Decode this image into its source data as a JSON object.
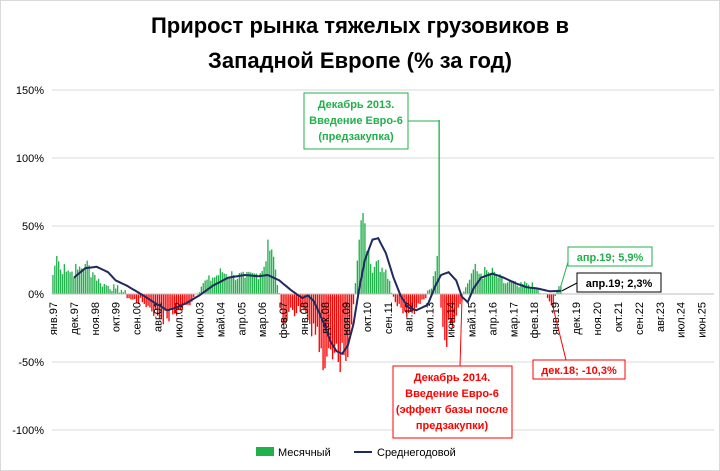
{
  "chart_data": {
    "type": "bar+line",
    "title": [
      "Прирост рынка тяжелых грузовиков в",
      "Западной Европе (% за год)"
    ],
    "ylim": [
      -100,
      150
    ],
    "yticks": [
      150,
      100,
      50,
      0,
      -50,
      -100
    ],
    "ytick_labels": [
      "150%",
      "100%",
      "50%",
      "0%",
      "-50%",
      "-100%"
    ],
    "grid": true,
    "x_start": "1997-01",
    "x_end": "2025-12",
    "x_tick_labels": [
      "янв.97",
      "дек.97",
      "ноя.98",
      "окт.99",
      "сен.00",
      "авг.01",
      "июл.02",
      "июн.03",
      "май.04",
      "апр.05",
      "мар.06",
      "фев.07",
      "янв.08",
      "дек.08",
      "ноя.09",
      "окт.10",
      "сен.11",
      "авг.12",
      "июл.13",
      "июн.14",
      "май.15",
      "апр.16",
      "мар.17",
      "фев.18",
      "янв.19",
      "дек.19",
      "ноя.20",
      "окт.21",
      "сен.22",
      "авг.23",
      "июл.24",
      "июн.25"
    ],
    "series": [
      {
        "name": "Месячный",
        "type": "bar",
        "color_positive": "#21b04b",
        "color_negative": "#ff0000",
        "monthly_from": "1997-01",
        "monthly_to": "2019-04",
        "anchors": [
          [
            "1997-01",
            14
          ],
          [
            "1997-03",
            28
          ],
          [
            "1997-05",
            18
          ],
          [
            "1997-07",
            22
          ],
          [
            "1997-10",
            16
          ],
          [
            "1998-02",
            18
          ],
          [
            "1998-06",
            22
          ],
          [
            "1998-10",
            16
          ],
          [
            "1999-02",
            8
          ],
          [
            "1999-06",
            6
          ],
          [
            "1999-10",
            4
          ],
          [
            "2000-01",
            3
          ],
          [
            "2000-06",
            -4
          ],
          [
            "2000-12",
            -6
          ],
          [
            "2001-04",
            -10
          ],
          [
            "2001-08",
            -16
          ],
          [
            "2002-01",
            -18
          ],
          [
            "2002-04",
            -15
          ],
          [
            "2002-08",
            -12
          ],
          [
            "2002-12",
            -8
          ],
          [
            "2003-04",
            0
          ],
          [
            "2003-08",
            8
          ],
          [
            "2004-01",
            12
          ],
          [
            "2004-06",
            16
          ],
          [
            "2004-12",
            14
          ],
          [
            "2005-06",
            12
          ],
          [
            "2005-12",
            15
          ],
          [
            "2006-04",
            20
          ],
          [
            "2006-06",
            40
          ],
          [
            "2006-10",
            18
          ],
          [
            "2007-01",
            -12
          ],
          [
            "2007-03",
            -22
          ],
          [
            "2007-06",
            -10
          ],
          [
            "2007-09",
            -14
          ],
          [
            "2008-01",
            -12
          ],
          [
            "2008-04",
            -22
          ],
          [
            "2008-07",
            -30
          ],
          [
            "2008-10",
            -40
          ],
          [
            "2009-01",
            -46
          ],
          [
            "2009-04",
            -48
          ],
          [
            "2009-07",
            -50
          ],
          [
            "2009-10",
            -45
          ],
          [
            "2010-01",
            -30
          ],
          [
            "2010-04",
            8
          ],
          [
            "2010-06",
            40
          ],
          [
            "2010-09",
            52
          ],
          [
            "2010-12",
            22
          ],
          [
            "2011-04",
            25
          ],
          [
            "2011-08",
            18
          ],
          [
            "2011-12",
            -2
          ],
          [
            "2012-04",
            -10
          ],
          [
            "2012-08",
            -14
          ],
          [
            "2012-12",
            -10
          ],
          [
            "2013-04",
            -4
          ],
          [
            "2013-08",
            4
          ],
          [
            "2013-11",
            28
          ],
          [
            "2013-12",
            128
          ],
          [
            "2014-01",
            -10
          ],
          [
            "2014-03",
            -34
          ],
          [
            "2014-06",
            -22
          ],
          [
            "2014-10",
            -10
          ],
          [
            "2015-02",
            5
          ],
          [
            "2015-06",
            18
          ],
          [
            "2015-10",
            15
          ],
          [
            "2016-02",
            16
          ],
          [
            "2016-06",
            14
          ],
          [
            "2016-10",
            8
          ],
          [
            "2017-02",
            9
          ],
          [
            "2017-06",
            5
          ],
          [
            "2017-10",
            8
          ],
          [
            "2018-02",
            5
          ],
          [
            "2018-06",
            0
          ],
          [
            "2018-09",
            -3
          ],
          [
            "2018-12",
            -10.3
          ],
          [
            "2019-02",
            3
          ],
          [
            "2019-04",
            5.9
          ]
        ]
      },
      {
        "name": "Среднегодовой",
        "type": "line",
        "color": "#1f2a5e",
        "anchors": [
          [
            "1997-12",
            12
          ],
          [
            "1998-06",
            19
          ],
          [
            "1998-12",
            20
          ],
          [
            "1999-06",
            16
          ],
          [
            "1999-10",
            10
          ],
          [
            "2000-04",
            6
          ],
          [
            "2000-10",
            1
          ],
          [
            "2001-06",
            -6
          ],
          [
            "2002-01",
            -12
          ],
          [
            "2002-06",
            -10
          ],
          [
            "2002-12",
            -6
          ],
          [
            "2003-06",
            -1
          ],
          [
            "2004-01",
            6
          ],
          [
            "2004-09",
            12
          ],
          [
            "2005-06",
            14
          ],
          [
            "2006-01",
            13
          ],
          [
            "2006-06",
            14
          ],
          [
            "2006-12",
            10
          ],
          [
            "2007-06",
            3
          ],
          [
            "2007-12",
            -3
          ],
          [
            "2008-03",
            -1
          ],
          [
            "2008-06",
            -5
          ],
          [
            "2008-09",
            -14
          ],
          [
            "2008-12",
            -24
          ],
          [
            "2009-03",
            -35
          ],
          [
            "2009-06",
            -42
          ],
          [
            "2009-09",
            -44
          ],
          [
            "2009-12",
            -38
          ],
          [
            "2010-03",
            -22
          ],
          [
            "2010-06",
            4
          ],
          [
            "2010-09",
            25
          ],
          [
            "2011-01",
            40
          ],
          [
            "2011-04",
            41
          ],
          [
            "2011-08",
            30
          ],
          [
            "2011-12",
            12
          ],
          [
            "2012-04",
            -2
          ],
          [
            "2012-08",
            -10
          ],
          [
            "2012-12",
            -12
          ],
          [
            "2013-06",
            -8
          ],
          [
            "2013-10",
            6
          ],
          [
            "2014-01",
            14
          ],
          [
            "2014-05",
            16
          ],
          [
            "2014-09",
            10
          ],
          [
            "2014-12",
            -2
          ],
          [
            "2015-03",
            -6
          ],
          [
            "2015-06",
            4
          ],
          [
            "2015-10",
            12
          ],
          [
            "2016-04",
            15
          ],
          [
            "2016-10",
            12
          ],
          [
            "2017-04",
            8
          ],
          [
            "2017-10",
            5
          ],
          [
            "2018-04",
            4
          ],
          [
            "2018-10",
            2
          ],
          [
            "2019-04",
            2.3
          ]
        ]
      }
    ],
    "legend": {
      "placement": "bottom",
      "items": [
        "Месячный",
        "Среднегодовой"
      ]
    },
    "annotations": [
      {
        "lines": [
          "Декабрь 2013.",
          "Введение Евро-6",
          "(предзакупка)"
        ],
        "color": "#21b04b",
        "points_to": "2013-12"
      },
      {
        "lines": [
          "Декабрь 2014.",
          "Введение Евро-6",
          "(эффект базы после",
          "предзакупки)"
        ],
        "color": "#ff0000",
        "points_to": "2014-12"
      },
      {
        "lines": [
          "апр.19; 5,9%"
        ],
        "color": "#21b04b",
        "points_to": "2019-04"
      },
      {
        "lines": [
          "апр.19; 2,3%"
        ],
        "color": "#000000",
        "points_to": "2019-04"
      },
      {
        "lines": [
          "дек.18; -10,3%"
        ],
        "color": "#ff0000",
        "points_to": "2018-12"
      }
    ]
  }
}
